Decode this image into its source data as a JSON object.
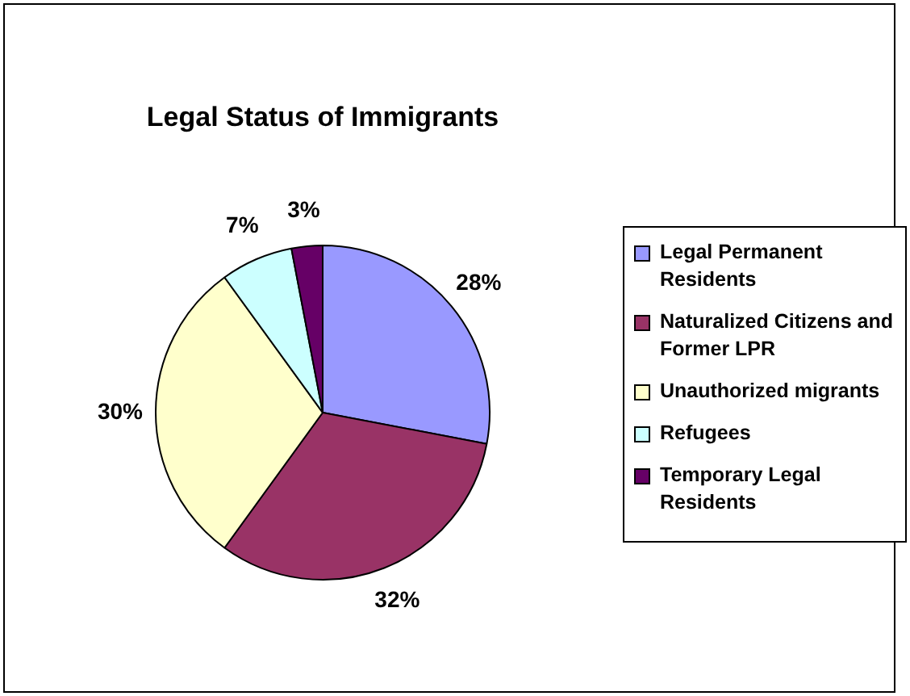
{
  "chart_data": {
    "type": "pie",
    "title": "Legal Status of Immigrants",
    "categories": [
      "Legal Permanent Residents",
      "Naturalized Citizens and Former LPR",
      "Unauthorized migrants",
      "Refugees",
      "Temporary Legal Residents"
    ],
    "values": [
      28,
      32,
      30,
      7,
      3
    ],
    "colors": [
      "#9999ff",
      "#993366",
      "#ffffcc",
      "#ccffff",
      "#660066"
    ],
    "value_labels": [
      "28%",
      "32%",
      "30%",
      "7%",
      "3%"
    ],
    "legend": "right"
  }
}
